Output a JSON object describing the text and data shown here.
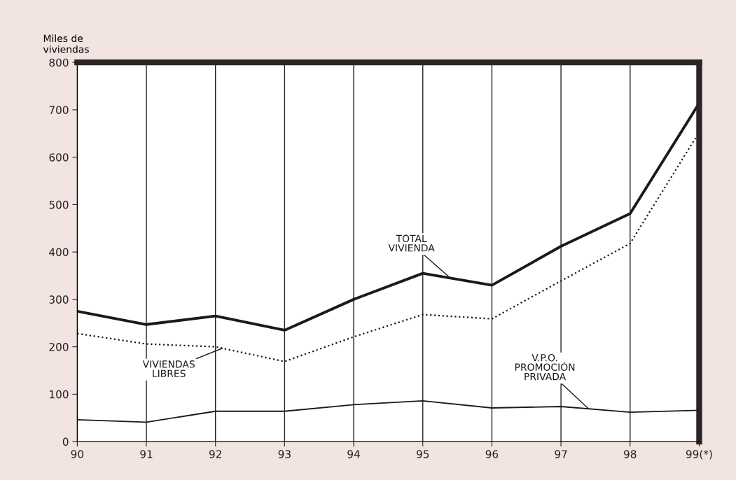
{
  "chart_data": {
    "type": "line",
    "ylabel": "Miles de\nviviendas",
    "categories": [
      "90",
      "91",
      "92",
      "93",
      "94",
      "95",
      "96",
      "97",
      "98",
      "99(*)"
    ],
    "series": [
      {
        "name": "TOTAL\nVIVIENDA",
        "color": "#1a1a1a",
        "line_style": "solid",
        "values": [
          275,
          247,
          265,
          235,
          300,
          355,
          330,
          412,
          481,
          714
        ]
      },
      {
        "name": "VIVIENDAS\nLIBRES",
        "color": "#1a1a1a",
        "line_style": "dotted",
        "values": [
          228,
          206,
          200,
          169,
          221,
          268,
          259,
          339,
          418,
          653
        ]
      },
      {
        "name": "V.P.O.\nPROMOCIÓN\nPRIVADA",
        "color": "#1a1a1a",
        "line_style": "solid",
        "values": [
          46,
          41,
          64,
          64,
          78,
          86,
          71,
          74,
          62,
          66
        ]
      }
    ],
    "ylim": [
      0,
      800
    ],
    "yticks": [
      0,
      100,
      200,
      300,
      400,
      500,
      600,
      700,
      800
    ],
    "grid": "x",
    "legend": false
  }
}
